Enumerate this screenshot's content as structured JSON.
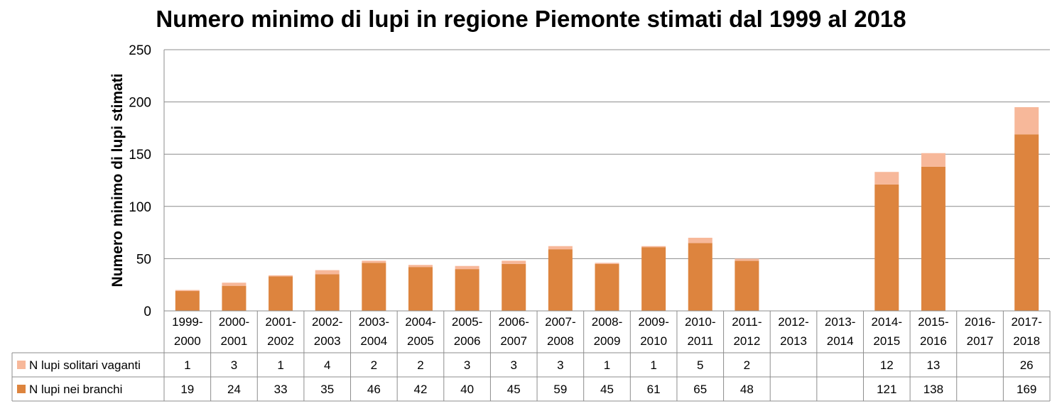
{
  "chart_data": {
    "type": "bar",
    "stacked": true,
    "title": "Numero minimo di lupi in regione Piemonte stimati dal 1999 al 2018",
    "ylabel": "Numero minimo di lupi stimati",
    "ylim": [
      0,
      250
    ],
    "yticks": [
      0,
      50,
      100,
      150,
      200,
      250
    ],
    "grid": true,
    "legend_position": "data table (bottom-left)",
    "categories": [
      [
        "1999-",
        "2000"
      ],
      [
        "2000-",
        "2001"
      ],
      [
        "2001-",
        "2002"
      ],
      [
        "2002-",
        "2003"
      ],
      [
        "2003-",
        "2004"
      ],
      [
        "2004-",
        "2005"
      ],
      [
        "2005-",
        "2006"
      ],
      [
        "2006-",
        "2007"
      ],
      [
        "2007-",
        "2008"
      ],
      [
        "2008-",
        "2009"
      ],
      [
        "2009-",
        "2010"
      ],
      [
        "2010-",
        "2011"
      ],
      [
        "2011-",
        "2012"
      ],
      [
        "2012-",
        "2013"
      ],
      [
        "2013-",
        "2014"
      ],
      [
        "2014-",
        "2015"
      ],
      [
        "2015-",
        "2016"
      ],
      [
        "2016-",
        "2017"
      ],
      [
        "2017-",
        "2018"
      ]
    ],
    "series": [
      {
        "name": "N lupi nei branchi",
        "color": "#DD843E",
        "values": [
          19,
          24,
          33,
          35,
          46,
          42,
          40,
          45,
          59,
          45,
          61,
          65,
          48,
          null,
          null,
          121,
          138,
          null,
          169
        ]
      },
      {
        "name": "N lupi solitari vaganti",
        "color": "#F7B89A",
        "values": [
          1,
          3,
          1,
          4,
          2,
          2,
          3,
          3,
          3,
          1,
          1,
          5,
          2,
          null,
          null,
          12,
          13,
          null,
          26
        ]
      }
    ],
    "table_row_order": [
      1,
      0
    ]
  }
}
